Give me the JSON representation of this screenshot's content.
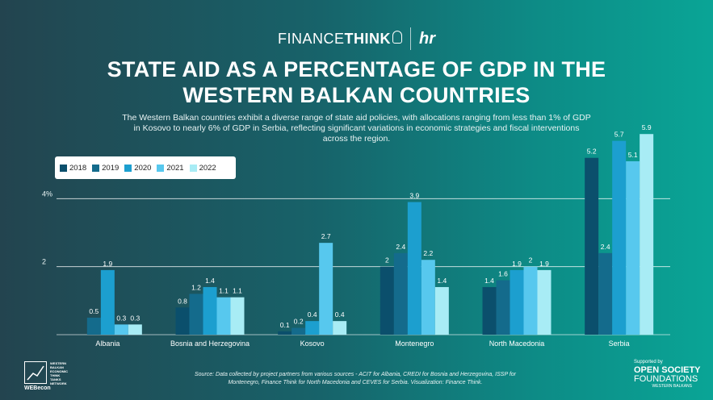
{
  "logos": {
    "financethink_light": "FINANCE",
    "financethink_bold": "THINK",
    "partner_mark": "hr",
    "webecon_lines": [
      "WESTERN",
      "BALKAN",
      "ECONOMIC",
      "THINK",
      "TANKS",
      "NETWORK"
    ],
    "webecon_label": "WEBecon",
    "osf_supported": "Supported by",
    "osf_line1": "OPEN SOCIETY",
    "osf_line2": "FOUNDATIONS",
    "osf_line3": "WESTERN BALKANS"
  },
  "title_line1": "STATE AID AS A PERCENTAGE OF GDP IN THE",
  "title_line2": "WESTERN BALKAN COUNTRIES",
  "subtitle": "The Western Balkan countries exhibit a diverse range of state aid policies, with allocations ranging from less than 1% of GDP in Kosovo to nearly 6% of GDP in Serbia, reflecting significant variations in economic strategies and fiscal interventions across the region.",
  "source": "Source: Data collected by project partners from various sources - ACIT for Albania, CREDI for Bosnia and Herzegovina, ISSP for Montenegro, Finance Think for North Macedonia and CEVES for Serbia. Visualization: Finance Think.",
  "chart_data": {
    "type": "bar",
    "categories": [
      "Albania",
      "Bosnia and Herzegovina",
      "Kosovo",
      "Montenegro",
      "North Macedonia",
      "Serbia"
    ],
    "series": [
      {
        "name": "2018",
        "color": "#0b4f6c",
        "values": [
          null,
          0.8,
          0.1,
          2,
          1.4,
          5.2
        ]
      },
      {
        "name": "2019",
        "color": "#146b8c",
        "values": [
          0.5,
          1.2,
          0.2,
          2.4,
          1.6,
          2.4
        ]
      },
      {
        "name": "2020",
        "color": "#1c9fcf",
        "values": [
          1.9,
          1.4,
          0.4,
          3.9,
          1.9,
          5.7
        ]
      },
      {
        "name": "2021",
        "color": "#57c8ee",
        "values": [
          0.3,
          1.1,
          2.7,
          2.2,
          2,
          5.1
        ]
      },
      {
        "name": "2022",
        "color": "#a8ecf5",
        "values": [
          0.3,
          1.1,
          0.4,
          1.4,
          1.9,
          5.9
        ]
      }
    ],
    "data_labels": [
      [
        "",
        "0.5",
        "1.9",
        "0.3",
        "0.3"
      ],
      [
        "0.8",
        "1.2",
        "1.4",
        "1.1",
        "1.1"
      ],
      [
        "0.1",
        "0.2",
        "0.4",
        "2.7",
        "0.4"
      ],
      [
        "2",
        "2.4",
        "3.9",
        "2.2",
        "1.4"
      ],
      [
        "1.4",
        "1.6",
        "1.9",
        "2",
        "1.9"
      ],
      [
        "5.2",
        "2.4",
        "5.7",
        "5.1",
        "5.9"
      ]
    ],
    "y_ticks": [
      {
        "value": 2,
        "label": "2"
      },
      {
        "value": 4,
        "label": "4%"
      }
    ],
    "ylim": [
      0,
      6
    ],
    "grid": true,
    "legend_position": "top-left"
  }
}
